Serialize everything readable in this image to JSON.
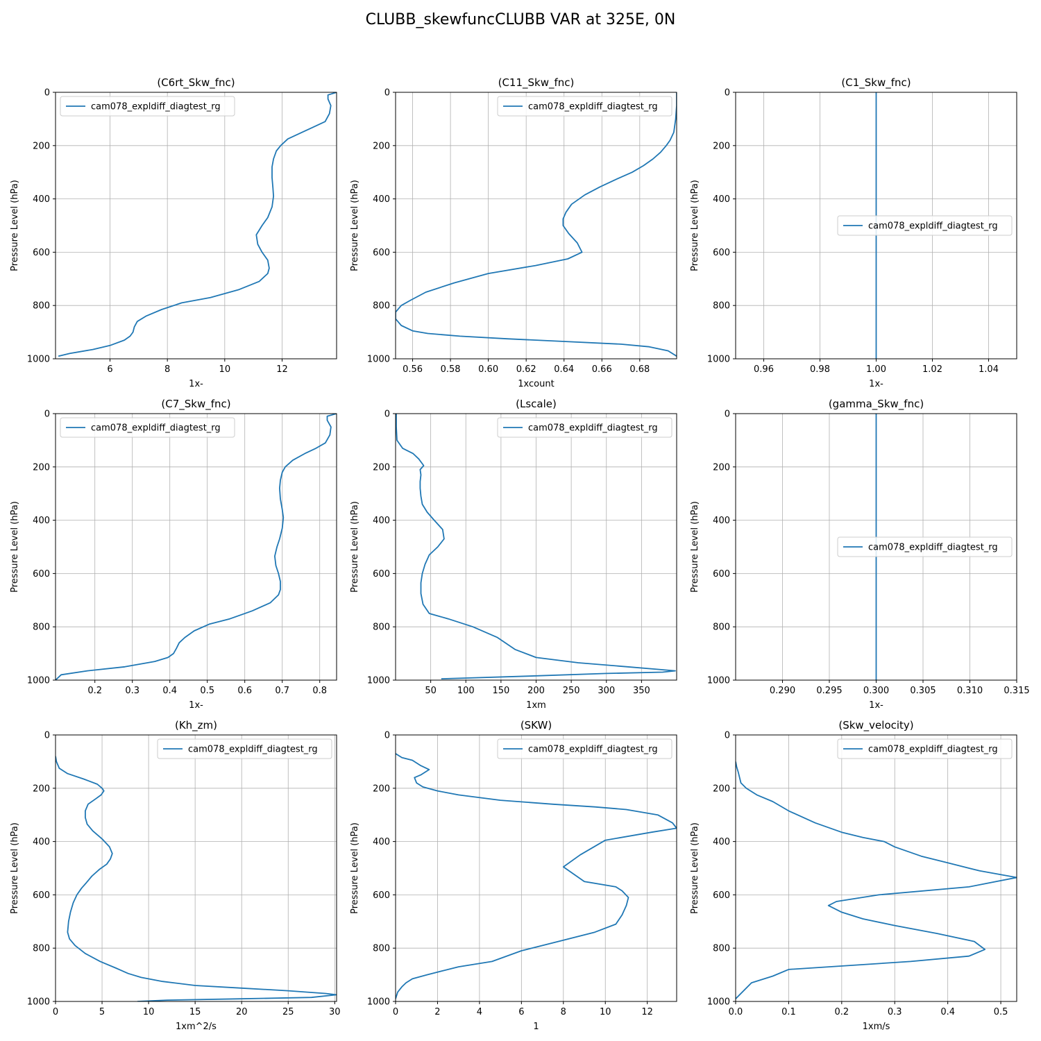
{
  "figure": {
    "title": "CLUBB_skewfuncCLUBB VAR at 325E, 0N"
  },
  "colors": {
    "series": "#1f77b4",
    "grid": "#b0b0b0",
    "axis": "#000000"
  },
  "chart_data": [
    {
      "type": "line",
      "title": "(C6rt_Skw_fnc)",
      "xlabel": "1x-",
      "ylabel": "Pressure Level (hPa)",
      "xlim": [
        4.1,
        13.9
      ],
      "ylim": [
        1000,
        0
      ],
      "grid": true,
      "xticks": [
        6,
        8,
        10,
        12
      ],
      "xtick_labels": [
        "6",
        "8",
        "10",
        "12"
      ],
      "yticks": [
        0,
        200,
        400,
        600,
        800,
        1000
      ],
      "ytick_labels": [
        "0",
        "200",
        "400",
        "600",
        "800",
        "1000"
      ],
      "legend": {
        "loc": "upper-left",
        "entries": [
          "cam078_expldiff_diagtest_rg"
        ]
      },
      "series": [
        {
          "name": "cam078_expldiff_diagtest_rg",
          "x": [
            13.9,
            13.6,
            13.6,
            13.7,
            13.65,
            13.5,
            13.1,
            12.7,
            12.2,
            11.95,
            11.8,
            11.7,
            11.65,
            11.65,
            11.68,
            11.7,
            11.65,
            11.5,
            11.3,
            11.1,
            11.15,
            11.3,
            11.5,
            11.55,
            11.5,
            11.2,
            10.5,
            9.5,
            8.5,
            7.8,
            7.25,
            6.95,
            6.85,
            6.8,
            6.7,
            6.5,
            6.0,
            5.4,
            4.6,
            4.2
          ],
          "y": [
            0,
            10,
            25,
            50,
            80,
            110,
            130,
            150,
            175,
            200,
            220,
            250,
            280,
            320,
            360,
            390,
            430,
            470,
            500,
            535,
            570,
            600,
            630,
            660,
            680,
            710,
            740,
            770,
            790,
            815,
            840,
            860,
            880,
            900,
            915,
            930,
            950,
            965,
            980,
            990
          ]
        }
      ]
    },
    {
      "type": "line",
      "title": "(C11_Skw_fnc)",
      "xlabel": "1xcount",
      "ylabel": "Pressure Level (hPa)",
      "xlim": [
        0.551,
        0.6995
      ],
      "ylim": [
        1000,
        0
      ],
      "grid": true,
      "xticks": [
        0.56,
        0.58,
        0.6,
        0.62,
        0.64,
        0.66,
        0.68
      ],
      "xtick_labels": [
        "0.56",
        "0.58",
        "0.60",
        "0.62",
        "0.64",
        "0.66",
        "0.68"
      ],
      "yticks": [
        0,
        200,
        400,
        600,
        800,
        1000
      ],
      "ytick_labels": [
        "0",
        "200",
        "400",
        "600",
        "800",
        "1000"
      ],
      "legend": {
        "loc": "upper-right",
        "entries": [
          "cam078_expldiff_diagtest_rg"
        ]
      },
      "series": [
        {
          "name": "cam078_expldiff_diagtest_rg",
          "x": [
            0.6995,
            0.6995,
            0.699,
            0.698,
            0.696,
            0.694,
            0.691,
            0.687,
            0.682,
            0.676,
            0.668,
            0.659,
            0.651,
            0.644,
            0.641,
            0.6395,
            0.6395,
            0.6425,
            0.647,
            0.6495,
            0.642,
            0.625,
            0.6,
            0.582,
            0.567,
            0.559,
            0.554,
            0.551,
            0.551,
            0.554,
            0.56,
            0.568,
            0.585,
            0.61,
            0.64,
            0.67,
            0.685,
            0.695,
            0.6995
          ],
          "y": [
            0,
            50,
            100,
            150,
            180,
            200,
            225,
            250,
            275,
            300,
            325,
            355,
            385,
            420,
            450,
            475,
            500,
            530,
            565,
            600,
            625,
            650,
            680,
            715,
            750,
            780,
            800,
            825,
            850,
            875,
            895,
            905,
            915,
            925,
            935,
            945,
            955,
            970,
            990
          ]
        }
      ]
    },
    {
      "type": "line",
      "title": "(C1_Skw_fnc)",
      "xlabel": "1x-",
      "ylabel": "Pressure Level (hPa)",
      "xlim": [
        0.95,
        1.05
      ],
      "ylim": [
        1000,
        0
      ],
      "grid": true,
      "xticks": [
        0.96,
        0.98,
        1.0,
        1.02,
        1.04
      ],
      "xtick_labels": [
        "0.96",
        "0.98",
        "1.00",
        "1.02",
        "1.04"
      ],
      "yticks": [
        0,
        200,
        400,
        600,
        800,
        1000
      ],
      "ytick_labels": [
        "0",
        "200",
        "400",
        "600",
        "800",
        "1000"
      ],
      "legend": {
        "loc": "center-right",
        "entries": [
          "cam078_expldiff_diagtest_rg"
        ]
      },
      "series": [
        {
          "name": "cam078_expldiff_diagtest_rg",
          "x": [
            1.0,
            1.0
          ],
          "y": [
            0,
            1000
          ]
        }
      ]
    },
    {
      "type": "line",
      "title": "(C7_Skw_fnc)",
      "xlabel": "1x-",
      "ylabel": "Pressure Level (hPa)",
      "xlim": [
        0.095,
        0.845
      ],
      "ylim": [
        1000,
        0
      ],
      "grid": true,
      "xticks": [
        0.2,
        0.3,
        0.4,
        0.5,
        0.6,
        0.7,
        0.8
      ],
      "xtick_labels": [
        "0.2",
        "0.3",
        "0.4",
        "0.5",
        "0.6",
        "0.7",
        "0.8"
      ],
      "yticks": [
        0,
        200,
        400,
        600,
        800,
        1000
      ],
      "ytick_labels": [
        "0",
        "200",
        "400",
        "600",
        "800",
        "1000"
      ],
      "legend": {
        "loc": "upper-left",
        "entries": [
          "cam078_expldiff_diagtest_rg"
        ]
      },
      "series": [
        {
          "name": "cam078_expldiff_diagtest_rg",
          "x": [
            0.845,
            0.82,
            0.82,
            0.83,
            0.827,
            0.815,
            0.79,
            0.76,
            0.728,
            0.708,
            0.7,
            0.695,
            0.693,
            0.695,
            0.7,
            0.703,
            0.7,
            0.693,
            0.686,
            0.68,
            0.683,
            0.69,
            0.695,
            0.695,
            0.69,
            0.668,
            0.62,
            0.56,
            0.505,
            0.465,
            0.44,
            0.425,
            0.418,
            0.41,
            0.395,
            0.36,
            0.28,
            0.18,
            0.11,
            0.095
          ],
          "y": [
            0,
            10,
            25,
            50,
            80,
            110,
            130,
            150,
            175,
            200,
            220,
            250,
            280,
            320,
            360,
            390,
            430,
            470,
            500,
            535,
            570,
            600,
            630,
            660,
            680,
            710,
            740,
            770,
            790,
            815,
            840,
            860,
            880,
            900,
            915,
            930,
            950,
            965,
            980,
            1000
          ]
        }
      ]
    },
    {
      "type": "line",
      "title": "(Lscale)",
      "xlabel": "1xm",
      "ylabel": "Pressure Level (hPa)",
      "xlim": [
        0,
        400
      ],
      "ylim": [
        1000,
        0
      ],
      "grid": true,
      "xticks": [
        50,
        100,
        150,
        200,
        250,
        300,
        350
      ],
      "xtick_labels": [
        "50",
        "100",
        "150",
        "200",
        "250",
        "300",
        "350"
      ],
      "yticks": [
        0,
        200,
        400,
        600,
        800,
        1000
      ],
      "ytick_labels": [
        "0",
        "200",
        "400",
        "600",
        "800",
        "1000"
      ],
      "legend": {
        "loc": "upper-right",
        "entries": [
          "cam078_expldiff_diagtest_rg"
        ]
      },
      "series": [
        {
          "name": "cam078_expldiff_diagtest_rg",
          "x": [
            1,
            1,
            2,
            10,
            25,
            33,
            40,
            35,
            36,
            35,
            35,
            36,
            38,
            45,
            55,
            67,
            69,
            60,
            48,
            42,
            38,
            36,
            36,
            39,
            48,
            75,
            110,
            145,
            170,
            200,
            260,
            330,
            375,
            398,
            380,
            300,
            190,
            65
          ],
          "y": [
            0,
            50,
            100,
            130,
            150,
            170,
            195,
            210,
            230,
            255,
            280,
            310,
            340,
            370,
            400,
            435,
            470,
            500,
            530,
            565,
            600,
            635,
            675,
            715,
            750,
            770,
            800,
            840,
            885,
            915,
            935,
            950,
            960,
            965,
            970,
            975,
            985,
            995
          ]
        }
      ]
    },
    {
      "type": "line",
      "title": "(gamma_Skw_fnc)",
      "xlabel": "1x-",
      "ylabel": "Pressure Level (hPa)",
      "xlim": [
        0.285,
        0.315
      ],
      "ylim": [
        1000,
        0
      ],
      "grid": true,
      "xticks": [
        0.29,
        0.295,
        0.3,
        0.305,
        0.31,
        0.315
      ],
      "xtick_labels": [
        "0.290",
        "0.295",
        "0.300",
        "0.305",
        "0.310",
        "0.315"
      ],
      "yticks": [
        0,
        200,
        400,
        600,
        800,
        1000
      ],
      "ytick_labels": [
        "0",
        "200",
        "400",
        "600",
        "800",
        "1000"
      ],
      "legend": {
        "loc": "center-right",
        "entries": [
          "cam078_expldiff_diagtest_rg"
        ]
      },
      "series": [
        {
          "name": "cam078_expldiff_diagtest_rg",
          "x": [
            0.3,
            0.3
          ],
          "y": [
            0,
            1000
          ]
        }
      ]
    },
    {
      "type": "line",
      "title": "(Kh_zm)",
      "xlabel": "1xm^2/s",
      "ylabel": "Pressure Level (hPa)",
      "xlim": [
        0,
        30.2
      ],
      "ylim": [
        1000,
        0
      ],
      "grid": true,
      "xticks": [
        0,
        5,
        10,
        15,
        20,
        25,
        30
      ],
      "xtick_labels": [
        "0",
        "5",
        "10",
        "15",
        "20",
        "25",
        "30"
      ],
      "yticks": [
        0,
        200,
        400,
        600,
        800,
        1000
      ],
      "ytick_labels": [
        "0",
        "200",
        "400",
        "600",
        "800",
        "1000"
      ],
      "legend": {
        "loc": "upper-right",
        "entries": [
          "cam078_expldiff_diagtest_rg"
        ]
      },
      "series": [
        {
          "name": "cam078_expldiff_diagtest_rg",
          "x": [
            0,
            0.1,
            0.4,
            1.3,
            3.0,
            4.5,
            5.0,
            5.2,
            4.9,
            4.3,
            3.5,
            3.2,
            3.2,
            3.4,
            4.0,
            5.0,
            5.8,
            6.1,
            5.9,
            5.5,
            4.7,
            3.9,
            3.3,
            2.8,
            2.3,
            1.9,
            1.6,
            1.4,
            1.3,
            1.5,
            2.1,
            3.2,
            4.8,
            6.5,
            7.8,
            9.2,
            11.5,
            15.0,
            20.0,
            25.0,
            29.0,
            30.2,
            27.5,
            20.0,
            12.0,
            8.8
          ],
          "y": [
            80,
            100,
            125,
            145,
            165,
            185,
            200,
            210,
            225,
            240,
            260,
            285,
            310,
            335,
            360,
            390,
            420,
            445,
            465,
            485,
            505,
            530,
            555,
            575,
            600,
            630,
            665,
            700,
            740,
            765,
            790,
            820,
            850,
            875,
            895,
            910,
            925,
            940,
            950,
            960,
            970,
            975,
            985,
            990,
            995,
            1000
          ]
        }
      ]
    },
    {
      "type": "line",
      "title": "(SKW)",
      "xlabel": "1",
      "ylabel": "Pressure Level (hPa)",
      "xlim": [
        0,
        13.4
      ],
      "ylim": [
        1000,
        0
      ],
      "grid": true,
      "xticks": [
        0,
        2,
        4,
        6,
        8,
        10,
        12
      ],
      "xtick_labels": [
        "0",
        "2",
        "4",
        "6",
        "8",
        "10",
        "12"
      ],
      "yticks": [
        0,
        200,
        400,
        600,
        800,
        1000
      ],
      "ytick_labels": [
        "0",
        "200",
        "400",
        "600",
        "800",
        "1000"
      ],
      "legend": {
        "loc": "upper-right",
        "entries": [
          "cam078_expldiff_diagtest_rg"
        ]
      },
      "series": [
        {
          "name": "cam078_expldiff_diagtest_rg",
          "x": [
            0,
            0.3,
            0.8,
            1.2,
            1.6,
            1.2,
            0.9,
            1.0,
            1.3,
            2.0,
            3.0,
            5.0,
            7.5,
            9.5,
            11.0,
            12.5,
            13.2,
            13.4,
            12.2,
            10.0,
            8.8,
            8.0,
            9.0,
            10.5,
            10.8,
            11.1,
            11.0,
            10.8,
            10.5,
            9.5,
            8.0,
            6.0,
            4.6,
            3.0,
            1.5,
            0.8,
            0.5,
            0.3,
            0.1,
            0
          ],
          "y": [
            70,
            85,
            95,
            115,
            130,
            150,
            160,
            180,
            195,
            210,
            225,
            245,
            260,
            270,
            280,
            300,
            330,
            350,
            365,
            395,
            450,
            495,
            550,
            570,
            585,
            610,
            640,
            675,
            710,
            740,
            770,
            810,
            850,
            870,
            900,
            915,
            930,
            945,
            965,
            990
          ]
        }
      ]
    },
    {
      "type": "line",
      "title": "(Skw_velocity)",
      "xlabel": "1xm/s",
      "ylabel": "Pressure Level (hPa)",
      "xlim": [
        0,
        0.53
      ],
      "ylim": [
        1000,
        0
      ],
      "grid": true,
      "xticks": [
        0.0,
        0.1,
        0.2,
        0.3,
        0.4,
        0.5
      ],
      "xtick_labels": [
        "0.0",
        "0.1",
        "0.2",
        "0.3",
        "0.4",
        "0.5"
      ],
      "yticks": [
        0,
        200,
        400,
        600,
        800,
        1000
      ],
      "ytick_labels": [
        "0",
        "200",
        "400",
        "600",
        "800",
        "1000"
      ],
      "legend": {
        "loc": "upper-right",
        "entries": [
          "cam078_expldiff_diagtest_rg"
        ]
      },
      "series": [
        {
          "name": "cam078_expldiff_diagtest_rg",
          "x": [
            0,
            0.002,
            0.005,
            0.01,
            0.02,
            0.04,
            0.07,
            0.1,
            0.15,
            0.2,
            0.24,
            0.28,
            0.3,
            0.35,
            0.4,
            0.46,
            0.53,
            0.44,
            0.27,
            0.19,
            0.175,
            0.2,
            0.24,
            0.3,
            0.38,
            0.45,
            0.47,
            0.44,
            0.33,
            0.1,
            0.07,
            0.03,
            0
          ],
          "y": [
            100,
            120,
            140,
            180,
            200,
            225,
            250,
            285,
            330,
            365,
            385,
            400,
            420,
            455,
            480,
            510,
            535,
            570,
            600,
            625,
            640,
            665,
            690,
            715,
            745,
            775,
            805,
            830,
            850,
            880,
            905,
            930,
            990
          ]
        }
      ]
    }
  ]
}
